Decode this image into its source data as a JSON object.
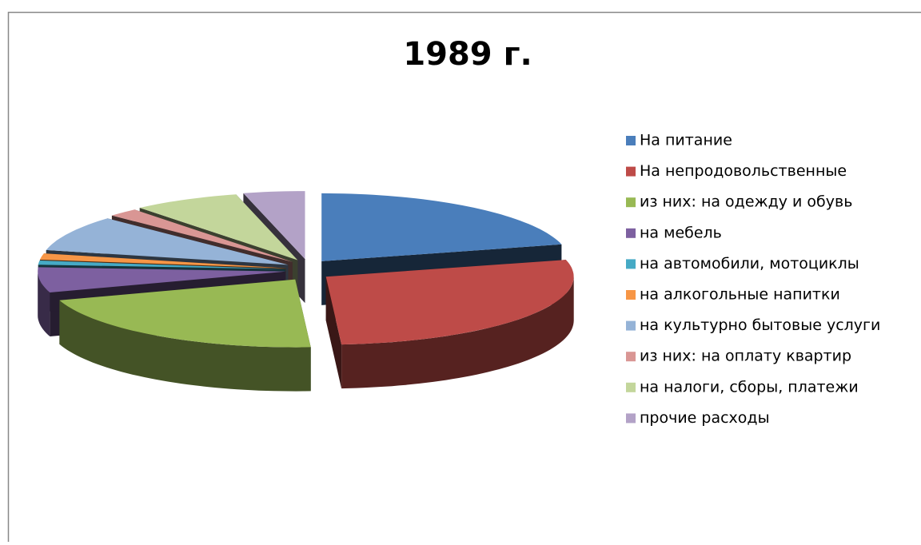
{
  "chart_data": {
    "type": "pie3d",
    "title": "1989 г.",
    "categories": [
      "На питание",
      "На непродовольственные",
      "из них: на одежду и обувь",
      "на мебель",
      "на автомобили, мотоциклы",
      "на алкогольные напитки",
      "на культурно бытовые услуги",
      "из них: на оплату квартир",
      "на налоги, сборы, платежи",
      "прочие расходы"
    ],
    "values": [
      21,
      28,
      21,
      6,
      1,
      1.5,
      8.5,
      2,
      7,
      4
    ],
    "colors": [
      "#4a7ebb",
      "#be4b48",
      "#98b954",
      "#7d60a0",
      "#46aac5",
      "#f79646",
      "#95b3d7",
      "#d99694",
      "#c3d69b",
      "#b3a2c7"
    ],
    "legend": "right"
  }
}
